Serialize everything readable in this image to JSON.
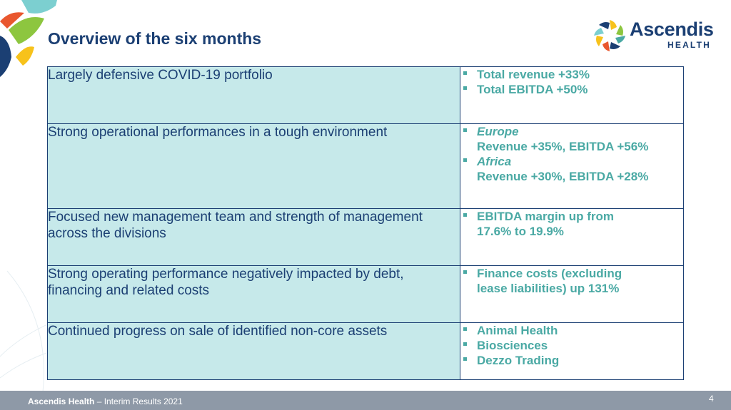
{
  "slide": {
    "title": "Overview of the six months",
    "page_number": "4"
  },
  "logo": {
    "word": "Ascendis",
    "sub": "HEALTH"
  },
  "rows": [
    {
      "left": "Largely defensive COVID-19 portfolio",
      "bullets": [
        {
          "lines": [
            "Total revenue +33%"
          ]
        },
        {
          "lines": [
            "Total EBITDA +50%"
          ]
        }
      ]
    },
    {
      "left": "Strong operational performances in a tough environment",
      "bullets": [
        {
          "lines": [
            "Europe",
            "Revenue +35%, EBITDA +56%"
          ]
        },
        {
          "lines": [
            "Africa",
            "Revenue +30%, EBITDA +28%"
          ]
        }
      ]
    },
    {
      "left": "Focused new management team and strength of management across the divisions",
      "bullets": [
        {
          "lines": [
            "EBITDA margin up from",
            "17.6% to 19.9%"
          ]
        }
      ]
    },
    {
      "left": "Strong operating performance negatively impacted by debt, financing and related costs",
      "bullets": [
        {
          "lines": [
            "Finance costs (excluding",
            "lease liabilities) up 131%"
          ]
        }
      ]
    },
    {
      "left": "Continued progress on sale of identified non-core assets",
      "bullets": [
        {
          "lines": [
            "Animal Health"
          ]
        },
        {
          "lines": [
            "Biosciences"
          ]
        },
        {
          "lines": [
            "Dezzo Trading"
          ]
        }
      ]
    }
  ],
  "footer": {
    "brand": "Ascendis Health",
    "separator": " – ",
    "text": "Interim Results 2021"
  },
  "colors": {
    "navy": "#1b3f73",
    "teal_text": "#4aa9a4",
    "left_cell_bg": "#c6e9ea",
    "footer_bg": "#8e99a7"
  }
}
